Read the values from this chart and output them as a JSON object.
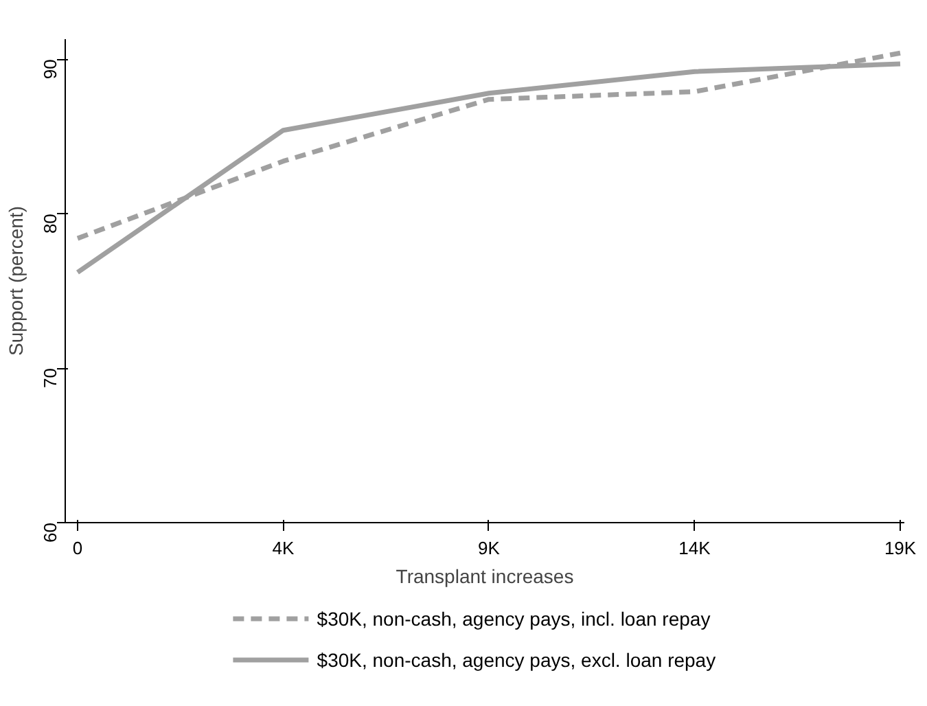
{
  "chart_data": {
    "type": "line",
    "xlabel": "Transplant increases",
    "ylabel": "Support (percent)",
    "categories": [
      "0",
      "4K",
      "9K",
      "14K",
      "19K"
    ],
    "ylim": [
      60,
      91.3
    ],
    "yticks": [
      60,
      70,
      80,
      90
    ],
    "grid": false,
    "legend": "bottom",
    "series": [
      {
        "name": "$30K, non-cash, agency pays, incl. loan repay",
        "color": "#a0a0a0",
        "line_style": "dashed",
        "values": [
          78.4,
          83.4,
          87.4,
          87.9,
          90.4
        ]
      },
      {
        "name": "$30K, non-cash, agency pays, excl. loan repay",
        "color": "#a0a0a0",
        "line_style": "solid",
        "values": [
          76.2,
          85.4,
          87.8,
          89.2,
          89.7
        ]
      }
    ]
  }
}
